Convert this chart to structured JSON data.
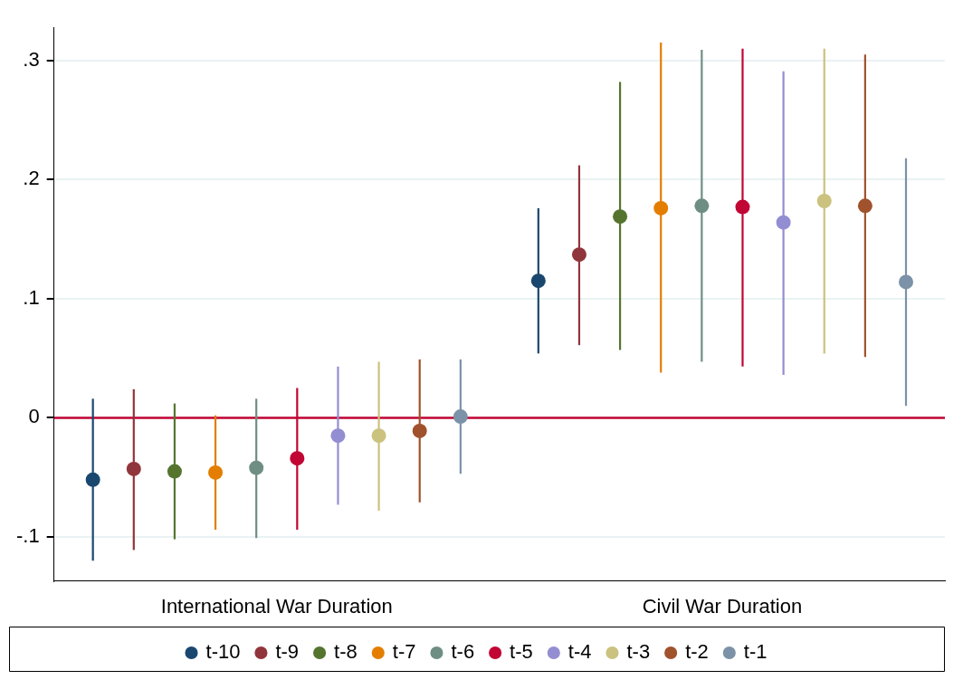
{
  "chart_data": {
    "type": "scatter",
    "categories": [
      "International War Duration",
      "Civil War Duration"
    ],
    "ylim": [
      -0.137,
      0.328
    ],
    "yticks": [
      {
        "value": -0.1,
        "label": "-.1"
      },
      {
        "value": 0,
        "label": "0"
      },
      {
        "value": 0.1,
        "label": ".1"
      },
      {
        "value": 0.2,
        "label": ".2"
      },
      {
        "value": 0.3,
        "label": ".3"
      }
    ],
    "grid": "y",
    "legend": "bottom",
    "marker": "circle",
    "ref_lines": [
      {
        "axis": "y",
        "value": 0,
        "color": "#c10534"
      }
    ],
    "series": [
      {
        "name": "t-10",
        "color": "#1a476f",
        "values": [
          -0.052,
          0.115
        ],
        "errors": [
          [
            -0.12,
            0.016
          ],
          [
            0.054,
            0.176
          ]
        ]
      },
      {
        "name": "t-9",
        "color": "#90353b",
        "values": [
          -0.043,
          0.137
        ],
        "errors": [
          [
            -0.111,
            0.024
          ],
          [
            0.061,
            0.212
          ]
        ]
      },
      {
        "name": "t-8",
        "color": "#55752f",
        "values": [
          -0.045,
          0.169
        ],
        "errors": [
          [
            -0.102,
            0.012
          ],
          [
            0.057,
            0.282
          ]
        ]
      },
      {
        "name": "t-7",
        "color": "#e37e00",
        "values": [
          -0.046,
          0.176
        ],
        "errors": [
          [
            -0.094,
            0.002
          ],
          [
            0.038,
            0.315
          ]
        ]
      },
      {
        "name": "t-6",
        "color": "#6e8e84",
        "values": [
          -0.042,
          0.178
        ],
        "errors": [
          [
            -0.101,
            0.016
          ],
          [
            0.047,
            0.309
          ]
        ]
      },
      {
        "name": "t-5",
        "color": "#c10534",
        "values": [
          -0.034,
          0.177
        ],
        "errors": [
          [
            -0.094,
            0.025
          ],
          [
            0.043,
            0.31
          ]
        ]
      },
      {
        "name": "t-4",
        "color": "#938dd2",
        "values": [
          -0.015,
          0.164
        ],
        "errors": [
          [
            -0.073,
            0.043
          ],
          [
            0.036,
            0.291
          ]
        ]
      },
      {
        "name": "t-3",
        "color": "#cac27e",
        "values": [
          -0.015,
          0.182
        ],
        "errors": [
          [
            -0.078,
            0.047
          ],
          [
            0.054,
            0.31
          ]
        ]
      },
      {
        "name": "t-2",
        "color": "#a0522d",
        "values": [
          -0.011,
          0.178
        ],
        "errors": [
          [
            -0.071,
            0.049
          ],
          [
            0.051,
            0.305
          ]
        ]
      },
      {
        "name": "t-1",
        "color": "#7b92a8",
        "values": [
          0.001,
          0.114
        ],
        "errors": [
          [
            -0.047,
            0.049
          ],
          [
            0.01,
            0.218
          ]
        ]
      }
    ]
  }
}
